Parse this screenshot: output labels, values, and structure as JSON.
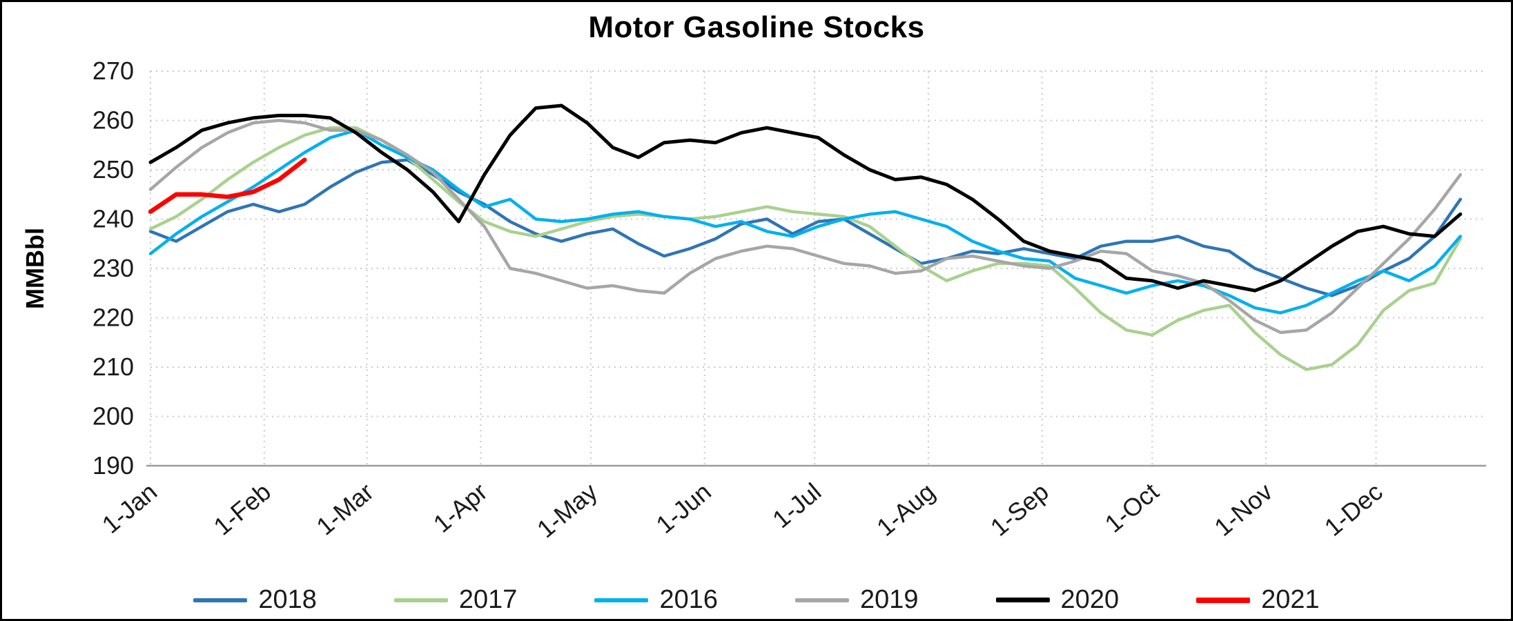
{
  "chart_data": {
    "type": "line",
    "title": "Motor Gasoline Stocks",
    "xlabel": "",
    "ylabel": "MMBbl",
    "ylim": [
      190,
      270
    ],
    "yticks": [
      190,
      200,
      210,
      220,
      230,
      240,
      250,
      260,
      270
    ],
    "grid": "dotted horizontal and vertical gridlines",
    "legend_position": "bottom",
    "x_unit": "day_of_year",
    "x_domain": [
      0,
      364
    ],
    "x_point_interval_days": 7,
    "xticks": {
      "days": [
        0,
        31,
        59,
        90,
        120,
        151,
        181,
        212,
        243,
        273,
        304,
        334
      ],
      "labels": [
        "1-Jan",
        "1-Feb",
        "1-Mar",
        "1-Apr",
        "1-May",
        "1-Jun",
        "1-Jul",
        "1-Aug",
        "1-Sep",
        "1-Oct",
        "1-Nov",
        "1-Dec"
      ]
    },
    "series": [
      {
        "name": "2018",
        "color": "#2E75B6",
        "width": 4.5,
        "values": [
          237.5,
          235.5,
          238.5,
          241.5,
          243,
          241.5,
          243,
          246.5,
          249.5,
          251.5,
          252,
          249,
          245.5,
          243,
          239.5,
          237,
          235.5,
          237,
          238,
          235,
          232.5,
          234,
          236,
          239,
          240,
          237,
          239.5,
          240,
          237,
          234,
          231,
          232,
          233.5,
          233,
          234,
          233,
          232,
          234.5,
          235.5,
          235.5,
          236.5,
          234.5,
          233.5,
          230,
          228,
          226,
          224.5,
          226.5,
          229.5,
          232,
          236.5,
          244
        ]
      },
      {
        "name": "2017",
        "color": "#A9D18E",
        "width": 4.5,
        "values": [
          238,
          240.5,
          244,
          248,
          251.5,
          254.5,
          257,
          258.5,
          258.5,
          256,
          252.5,
          248,
          243.5,
          239.5,
          237.5,
          236.5,
          238,
          239.5,
          240.5,
          241,
          240.5,
          240,
          240.5,
          241.5,
          242.5,
          241.5,
          241,
          240.5,
          238.5,
          234.5,
          230.5,
          227.5,
          229.5,
          231,
          231,
          230.5,
          226,
          221,
          217.5,
          216.5,
          219.5,
          221.5,
          222.5,
          217,
          212.5,
          209.5,
          210.5,
          214.5,
          221.5,
          225.5,
          227,
          236
        ]
      },
      {
        "name": "2016",
        "color": "#00B0F0",
        "width": 4.5,
        "values": [
          233,
          237,
          240.5,
          243.5,
          246.5,
          250,
          253.5,
          256.5,
          258,
          255,
          252.5,
          250,
          246,
          242.5,
          244,
          240,
          239.5,
          240,
          241,
          241.5,
          240.5,
          240,
          238.5,
          239.5,
          237.5,
          236.5,
          238.5,
          240,
          241,
          241.5,
          240,
          238.5,
          235.5,
          233.5,
          232,
          231.5,
          228,
          226.5,
          225,
          226.5,
          227.5,
          226.5,
          224.5,
          222,
          221,
          222.5,
          225,
          227.5,
          229.5,
          227.5,
          230.5,
          236.5
        ]
      },
      {
        "name": "2019",
        "color": "#A6A6A6",
        "width": 4.5,
        "values": [
          246,
          250.5,
          254.5,
          257.5,
          259.5,
          260,
          259.5,
          258,
          258,
          256,
          253,
          249.5,
          244,
          238.5,
          230,
          229,
          227.5,
          226,
          226.5,
          225.5,
          225,
          229,
          232,
          233.5,
          234.5,
          234,
          232.5,
          231,
          230.5,
          229,
          229.5,
          232,
          232.5,
          231.5,
          230.5,
          230,
          231.5,
          233.5,
          233,
          229.5,
          228.5,
          227,
          223.5,
          219.5,
          217,
          217.5,
          221,
          226,
          231,
          236,
          242,
          249
        ]
      },
      {
        "name": "2020",
        "color": "#000000",
        "width": 5,
        "values": [
          251.5,
          254.5,
          258,
          259.5,
          260.5,
          261,
          261,
          260.5,
          257.5,
          253.5,
          250,
          245.5,
          239.5,
          249,
          257,
          262.5,
          263,
          259.5,
          254.5,
          252.5,
          255.5,
          256,
          255.5,
          257.5,
          258.5,
          257.5,
          256.5,
          253,
          250,
          248,
          248.5,
          247,
          244,
          240,
          235.5,
          233.5,
          232.5,
          231.5,
          228,
          227.5,
          226,
          227.5,
          226.5,
          225.5,
          227.5,
          231,
          234.5,
          237.5,
          238.5,
          237,
          236.5,
          241
        ]
      },
      {
        "name": "2021",
        "color": "#FF0000",
        "width": 6.5,
        "values": [
          241.5,
          245,
          245,
          244.5,
          245.5,
          248,
          252
        ]
      }
    ]
  }
}
